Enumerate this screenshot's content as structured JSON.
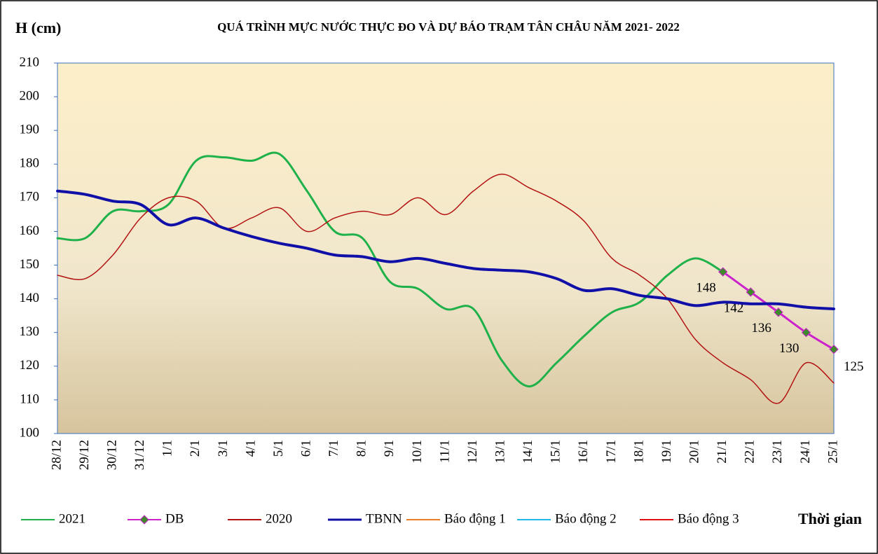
{
  "chart_data": {
    "type": "line",
    "title": "QUÁ TRÌNH MỰC NƯỚC THỰC ĐO VÀ DỰ BÁO TRẠM TÂN CHÂU NĂM 2021- 2022",
    "y_label": "H (cm)",
    "x_label": "Thời gian",
    "categories": [
      "28/12",
      "29/12",
      "30/12",
      "31/12",
      "1/1",
      "2/1",
      "3/1",
      "4/1",
      "5/1",
      "6/1",
      "7/1",
      "8/1",
      "9/1",
      "10/1",
      "11/1",
      "12/1",
      "13/1",
      "14/1",
      "15/1",
      "16/1",
      "17/1",
      "18/1",
      "19/1",
      "20/1",
      "21/1",
      "22/1",
      "23/1",
      "24/1",
      "25/1"
    ],
    "ylim": [
      100,
      210
    ],
    "yticks": [
      100,
      110,
      120,
      130,
      140,
      150,
      160,
      170,
      180,
      190,
      200,
      210
    ],
    "series": [
      {
        "name": "2021",
        "color": "#1fb14a",
        "values": [
          158,
          158,
          166,
          166,
          168,
          181,
          182,
          181,
          183,
          172,
          160,
          158,
          145,
          143,
          137,
          137,
          122,
          114,
          121,
          129,
          136,
          139,
          147,
          152,
          148,
          null,
          null,
          null,
          null
        ]
      },
      {
        "name": "DB",
        "color": "#cc22cc",
        "marker_color": "#3f8a2a",
        "values": [
          null,
          null,
          null,
          null,
          null,
          null,
          null,
          null,
          null,
          null,
          null,
          null,
          null,
          null,
          null,
          null,
          null,
          null,
          null,
          null,
          null,
          null,
          null,
          null,
          148,
          142,
          136,
          130,
          125
        ]
      },
      {
        "name": "2020",
        "color": "#b31313",
        "values": [
          147,
          146,
          153,
          164,
          170,
          169,
          161,
          164,
          167,
          160,
          164,
          166,
          165,
          170,
          165,
          172,
          177,
          173,
          169,
          163,
          152,
          147,
          140,
          128,
          121,
          116,
          109,
          121,
          115
        ]
      },
      {
        "name": "TBNN",
        "color": "#1010a8",
        "values": [
          172,
          171,
          169,
          168,
          162,
          164,
          161,
          158.5,
          156.5,
          155,
          153,
          152.5,
          151,
          152,
          150.5,
          149,
          148.5,
          148,
          146,
          142.5,
          143,
          141,
          140,
          138,
          139,
          138.5,
          138.5,
          137.5,
          137
        ]
      },
      {
        "name": "Báo động 1",
        "color": "#f07b22",
        "values": [
          null,
          null,
          null,
          null,
          null,
          null,
          null,
          null,
          null,
          null,
          null,
          null,
          null,
          null,
          null,
          null,
          null,
          null,
          null,
          null,
          null,
          null,
          null,
          null,
          null,
          null,
          null,
          null,
          null
        ]
      },
      {
        "name": "Báo động 2",
        "color": "#22b8e8",
        "values": [
          null,
          null,
          null,
          null,
          null,
          null,
          null,
          null,
          null,
          null,
          null,
          null,
          null,
          null,
          null,
          null,
          null,
          null,
          null,
          null,
          null,
          null,
          null,
          null,
          null,
          null,
          null,
          null,
          null
        ]
      },
      {
        "name": "Báo động 3",
        "color": "#e01010",
        "values": [
          null,
          null,
          null,
          null,
          null,
          null,
          null,
          null,
          null,
          null,
          null,
          null,
          null,
          null,
          null,
          null,
          null,
          null,
          null,
          null,
          null,
          null,
          null,
          null,
          null,
          null,
          null,
          null,
          null
        ]
      }
    ]
  }
}
